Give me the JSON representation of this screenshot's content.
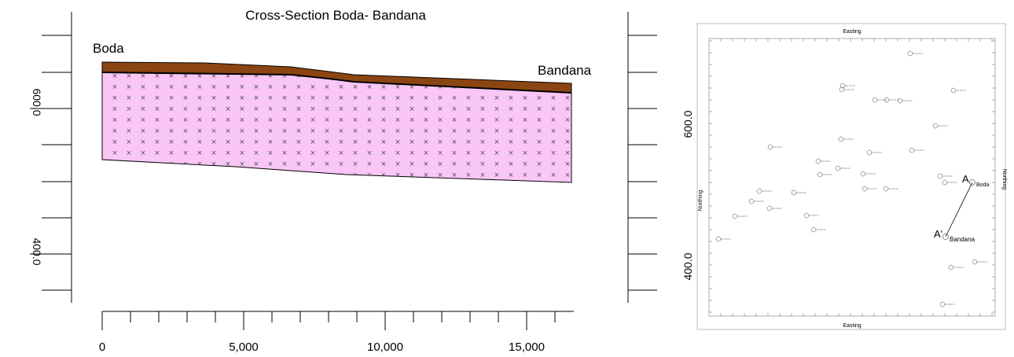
{
  "cross_section": {
    "title": "Cross-Section Boda- Bandana",
    "left_well": "Boda",
    "right_well": "Bandana",
    "x_ticks": [
      "0",
      "5,000",
      "10,000",
      "15,000"
    ],
    "left_axis_labels": [
      "600.0",
      "400.0"
    ]
  },
  "map": {
    "x_axis_label": "Easting",
    "y_axis_label": "Northing",
    "y_ticks": [
      "600.0",
      "400.0"
    ],
    "section_start": "A",
    "section_end": "A'",
    "start_well": "Boda",
    "end_well": "Bandana"
  },
  "colors": {
    "soil": "#8b4513",
    "bedrock": "#f9c6f6",
    "cross_mark": "#555555"
  }
}
